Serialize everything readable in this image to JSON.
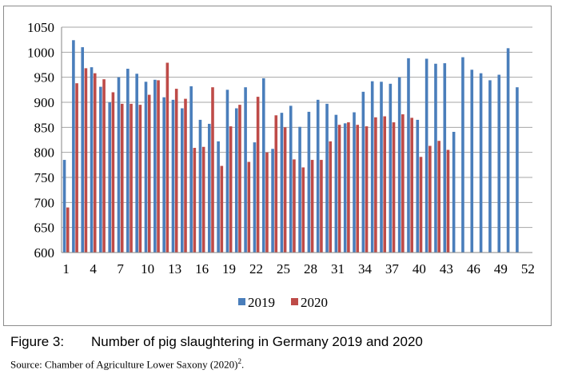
{
  "chart_data": {
    "type": "bar",
    "x": [
      1,
      2,
      3,
      4,
      5,
      6,
      7,
      8,
      9,
      10,
      11,
      12,
      13,
      14,
      15,
      16,
      17,
      18,
      19,
      20,
      21,
      22,
      23,
      24,
      25,
      26,
      27,
      28,
      29,
      30,
      31,
      32,
      33,
      34,
      35,
      36,
      37,
      38,
      39,
      40,
      41,
      42,
      43,
      44,
      45,
      46,
      47,
      48,
      49,
      50,
      51,
      52
    ],
    "x_tick_labels": [
      "1",
      "4",
      "7",
      "10",
      "13",
      "16",
      "19",
      "22",
      "25",
      "28",
      "31",
      "34",
      "37",
      "40",
      "43",
      "46",
      "49",
      "52"
    ],
    "ylim": [
      600,
      1050
    ],
    "y_tick_labels": [
      "600",
      "650",
      "700",
      "750",
      "800",
      "850",
      "900",
      "950",
      "1000",
      "1050"
    ],
    "legend_position": "bottom",
    "series": [
      {
        "name": "2019",
        "color": "#4a7ebb",
        "values": [
          785,
          1024,
          1010,
          970,
          931,
          900,
          950,
          967,
          957,
          941,
          945,
          910,
          905,
          888,
          932,
          865,
          857,
          822,
          925,
          888,
          930,
          820,
          948,
          807,
          879,
          893,
          851,
          881,
          905,
          897,
          875,
          858,
          880,
          921,
          942,
          941,
          937,
          950,
          988,
          865,
          987,
          977,
          978,
          841,
          990,
          965,
          958,
          944,
          955,
          1008,
          930,
          null
        ]
      },
      {
        "name": "2020",
        "color": "#be4b48",
        "values": [
          690,
          938,
          968,
          958,
          946,
          920,
          897,
          897,
          895,
          915,
          944,
          979,
          927,
          907,
          809,
          811,
          930,
          773,
          852,
          895,
          781,
          911,
          800,
          874,
          850,
          786,
          770,
          785,
          785,
          822,
          855,
          860,
          855,
          852,
          870,
          872,
          860,
          876,
          869,
          791,
          813,
          823,
          805,
          null,
          null,
          null,
          null,
          null,
          null,
          null,
          null,
          null
        ]
      }
    ]
  },
  "caption": {
    "label": "Figure 3:",
    "text": "Number of pig slaughtering in Germany 2019 and 2020"
  },
  "source": {
    "text": "Source: Chamber of Agriculture Lower Saxony (2020)",
    "superscript": "2",
    "suffix": "."
  }
}
